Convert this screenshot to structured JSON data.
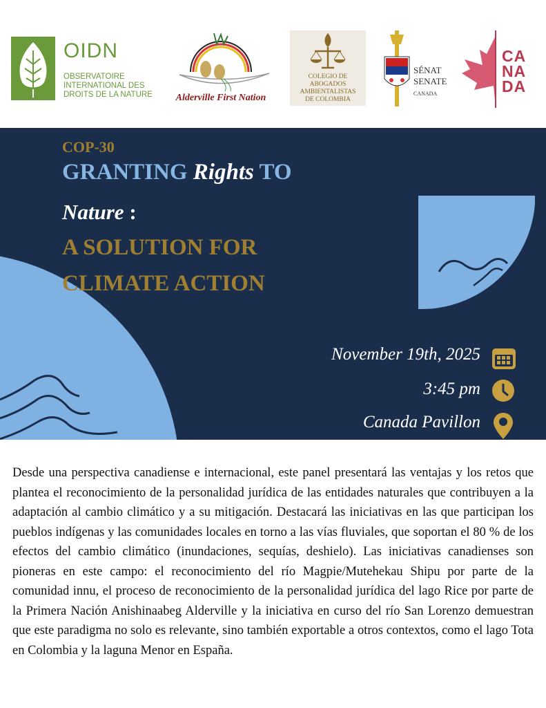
{
  "logos": {
    "oidn": {
      "name": "OIDN",
      "subtitle": "OBSERVATOIRE INTERNATIONAL DES DROITS DE LA NATURE"
    },
    "alderville": {
      "name": "Alderville First Nation"
    },
    "colegio": {
      "name": "COLEGIO DE ABOGADOS AMBIENTALISTAS DE COLOMBIA"
    },
    "senate": {
      "line1": "SÉNAT",
      "line2": "SENATE",
      "line3": "CANADA"
    },
    "canada": {
      "l1": "CA",
      "l2": "NA",
      "l3": "DA"
    }
  },
  "banner": {
    "event": "COP-30",
    "title_a": "GRANTING ",
    "title_b": "Rights",
    "title_c": " TO",
    "title_d": "Nature",
    "title_e": " :",
    "subtitle_1": "A SOLUTION FOR",
    "subtitle_2": "CLIMATE ACTION",
    "date": "November 19th, 2025",
    "time": "3:45 pm",
    "location": "Canada Pavillon",
    "icons": {
      "date": "calendar-icon",
      "time": "clock-icon",
      "location": "map-pin-icon"
    },
    "colors": {
      "background": "#1a2e4c",
      "gold": "#a08030",
      "light_blue": "#86b6e4"
    }
  },
  "description": "Desde una perspectiva canadiense e internacional, este panel presentará las ventajas y los retos que plantea el reconocimiento de la personalidad jurídica de las entidades naturales que contribuyen a la adaptación al cambio climático y a su mitigación. Destacará las iniciativas en las que participan los pueblos indígenas y las comunidades locales en torno a las vías fluviales, que soportan el 80 % de los efectos del cambio climático (inundaciones, sequías, deshielo). Las iniciativas canadienses son pioneras en este campo: el reconocimiento del río Magpie/Mutehekau Shipu por parte de la comunidad innu, el proceso de reconocimiento de la personalidad jurídica del lago Rice por parte de la Primera Nación Anishinaabeg Alderville y la iniciativa en curso del río San Lorenzo demuestran que este paradigma no solo es relevante, sino también exportable a otros contextos, como el lago Tota en Colombia y la laguna Menor en España."
}
